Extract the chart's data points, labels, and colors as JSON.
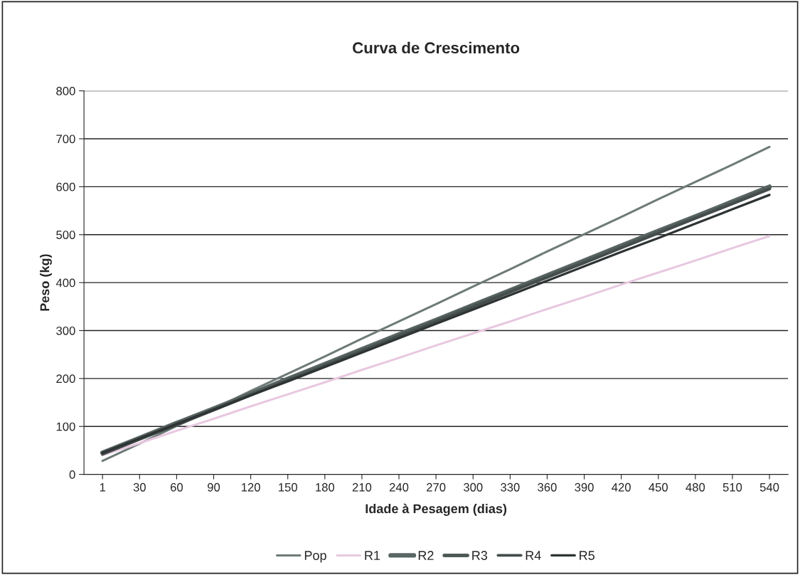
{
  "chart_data": {
    "type": "line",
    "title": "Curva de Crescimento",
    "xlabel": "Idade à Pesagem (dias)",
    "ylabel": "Peso (kg)",
    "categories": [
      "1",
      "30",
      "60",
      "90",
      "120",
      "150",
      "180",
      "210",
      "240",
      "270",
      "300",
      "330",
      "360",
      "390",
      "420",
      "450",
      "480",
      "510",
      "540"
    ],
    "series": [
      {
        "name": "Pop",
        "color": "#6e7b78",
        "values": [
          28,
          64,
          101,
          137,
          174,
          210,
          246,
          283,
          319,
          355,
          392,
          428,
          465,
          501,
          537,
          574,
          610,
          646,
          683
        ]
      },
      {
        "name": "R1",
        "color": "#e8c8e0",
        "values": [
          40,
          65,
          91,
          116,
          142,
          167,
          192,
          218,
          243,
          269,
          294,
          319,
          345,
          370,
          396,
          421,
          446,
          472,
          497
        ]
      },
      {
        "name": "R2",
        "color": "#5a6664",
        "values": [
          45,
          76,
          107,
          137,
          168,
          199,
          230,
          261,
          292,
          322,
          353,
          384,
          415,
          446,
          477,
          508,
          538,
          569,
          600
        ]
      },
      {
        "name": "R3",
        "color": "#4e5a58",
        "values": [
          43,
          74,
          105,
          135,
          166,
          197,
          228,
          258,
          289,
          320,
          351,
          382,
          412,
          443,
          474,
          505,
          535,
          566,
          597
        ]
      },
      {
        "name": "R4",
        "color": "#444c4c",
        "values": [
          42,
          73,
          103,
          134,
          165,
          196,
          226,
          257,
          288,
          318,
          349,
          380,
          411,
          441,
          472,
          503,
          534,
          564,
          595
        ]
      },
      {
        "name": "R5",
        "color": "#2e3434",
        "values": [
          45,
          75,
          105,
          135,
          165,
          194,
          224,
          254,
          284,
          314,
          344,
          374,
          404,
          434,
          464,
          493,
          523,
          553,
          583
        ]
      }
    ],
    "ylim": [
      0,
      800
    ],
    "yticks": [
      0,
      100,
      200,
      300,
      400,
      500,
      600,
      700,
      800
    ],
    "grid": "y",
    "legend": "bottom",
    "marker": "none",
    "line_style": "solid"
  }
}
